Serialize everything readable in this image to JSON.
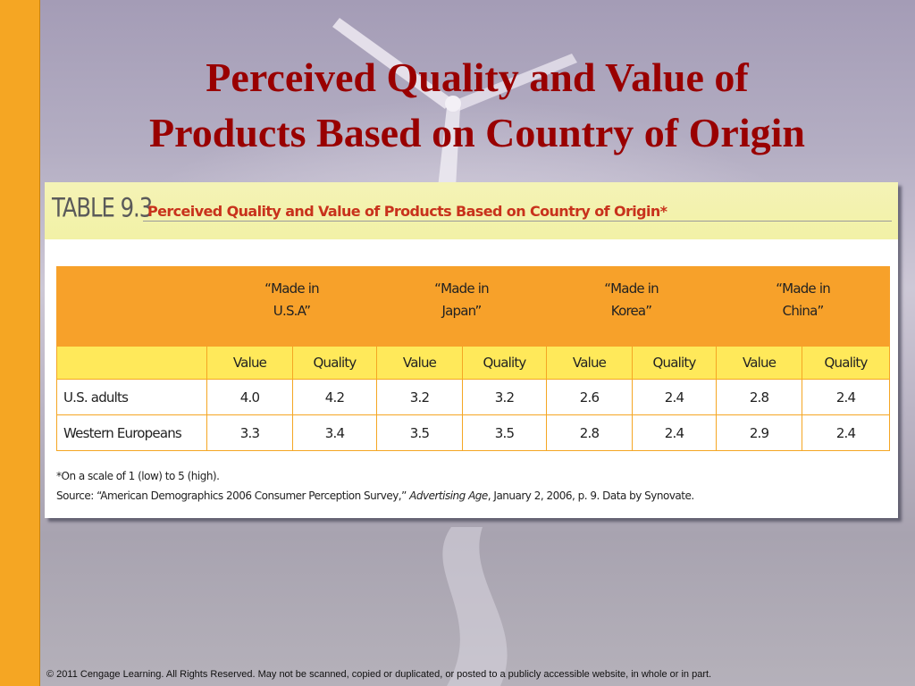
{
  "slide": {
    "title_line1": "Perceived Quality and Value of",
    "title_line2": "Products Based on Country of Origin",
    "copyright": "© 2011 Cengage Learning. All Rights Reserved. May not be scanned, copied or duplicated, or posted to a publicly accessible website, in whole or in part.",
    "accent_color": "#f5a623",
    "title_color": "#990000"
  },
  "table": {
    "number": "TABLE 9.3",
    "title": "Perceived Quality and Value of Products Based on Country of Origin*",
    "countries": [
      {
        "line1": "“Made in",
        "line2": "U.S.A”"
      },
      {
        "line1": "“Made in",
        "line2": "Japan”"
      },
      {
        "line1": "“Made in",
        "line2": "Korea”"
      },
      {
        "line1": "“Made in",
        "line2": "China”"
      }
    ],
    "metric_value": "Value",
    "metric_quality": "Quality",
    "rows": [
      {
        "label": "U.S. adults",
        "values": [
          "4.0",
          "4.2",
          "3.2",
          "3.2",
          "2.6",
          "2.4",
          "2.8",
          "2.4"
        ]
      },
      {
        "label": "Western Europeans",
        "values": [
          "3.3",
          "3.4",
          "3.5",
          "3.5",
          "2.8",
          "2.4",
          "2.9",
          "2.4"
        ]
      }
    ],
    "footnote": "*On a scale of 1 (low) to 5 (high).",
    "source_prefix": "Source: “American Demographics 2006 Consumer Perception Survey,” ",
    "source_italic": "Advertising Age",
    "source_suffix": ", January 2, 2006, p. 9. Data by Synovate.",
    "header_color": "#f7a12a",
    "subheader_color": "#ffe95a",
    "banner_color": "#f2f1a6"
  }
}
